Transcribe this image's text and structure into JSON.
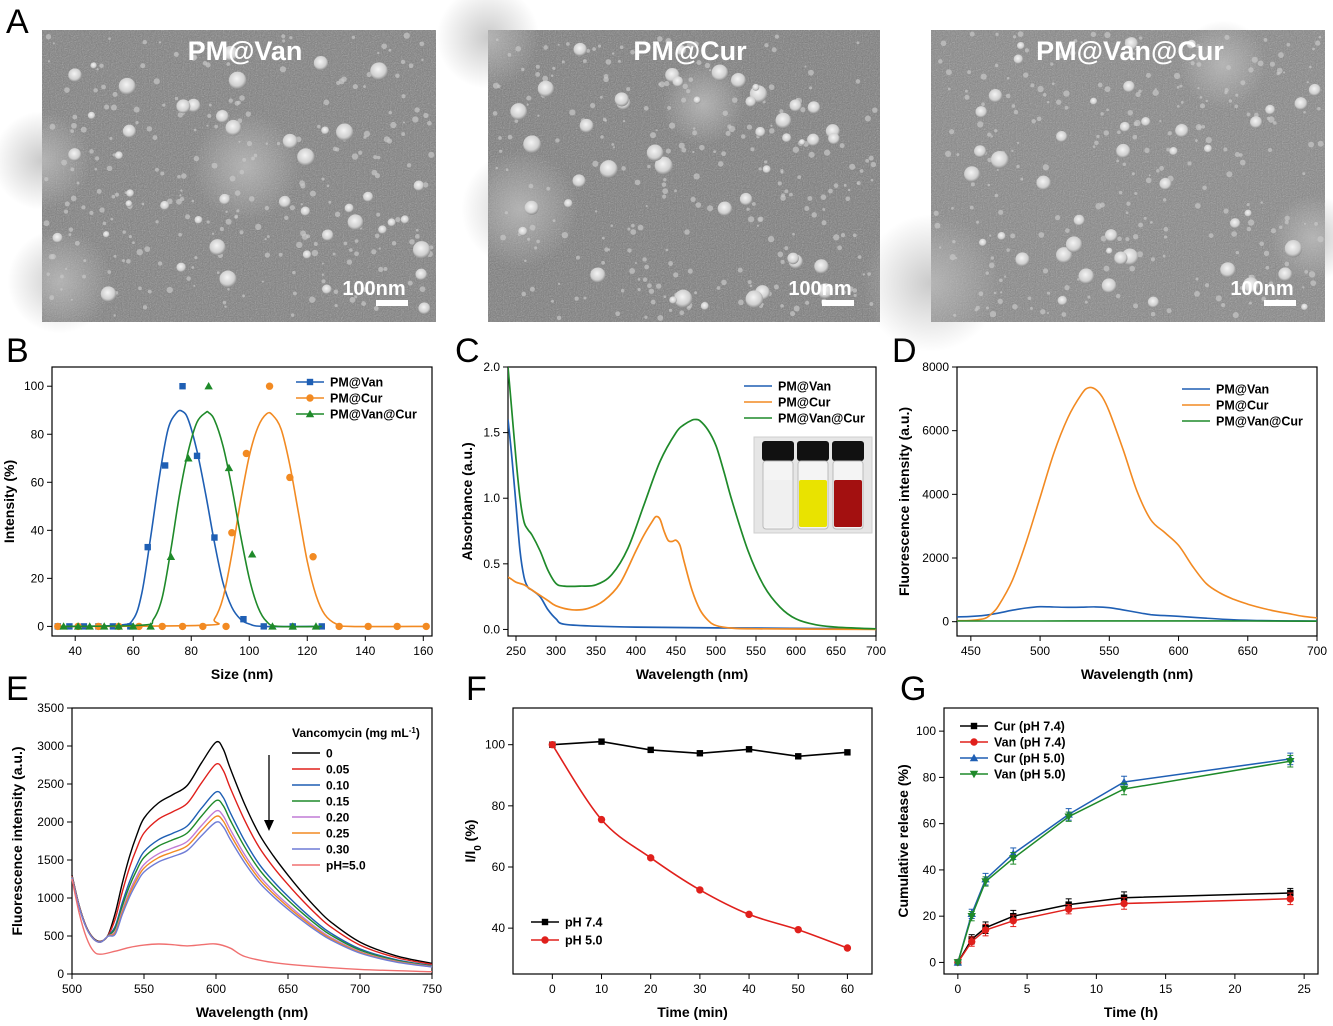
{
  "figure": {
    "panel_letters": [
      "A",
      "B",
      "C",
      "D",
      "E",
      "F",
      "G"
    ],
    "tem": [
      {
        "label": "PM@Van",
        "scale_bar": "100nm"
      },
      {
        "label": "PM@Cur",
        "scale_bar": "100nm"
      },
      {
        "label": "PM@Van@Cur",
        "scale_bar": "100nm"
      }
    ]
  },
  "chart_data": [
    {
      "panel": "B",
      "type": "line",
      "xlabel": "Size (nm)",
      "ylabel": "Intensity (%)",
      "xlim": [
        32,
        163
      ],
      "ylim": [
        -4,
        108
      ],
      "xticks": [
        40,
        60,
        80,
        100,
        120,
        140,
        160
      ],
      "yticks": [
        0,
        20,
        40,
        60,
        80,
        100
      ],
      "legend_position": "top-right",
      "series": [
        {
          "name": "PM@Van",
          "color": "#1f5fb4",
          "marker": "square",
          "x": [
            34,
            38,
            43,
            48,
            53,
            59,
            65,
            71,
            77,
            82,
            88,
            98,
            105,
            115,
            125
          ],
          "y": [
            0,
            0,
            0,
            0,
            0,
            0,
            33,
            67,
            100,
            71,
            37,
            3,
            0,
            0,
            0
          ],
          "curve_x": [
            35,
            55,
            60,
            63,
            66,
            69,
            72,
            75,
            77,
            79,
            82,
            85,
            88,
            91,
            94,
            97,
            100,
            105,
            125
          ],
          "curve_y": [
            0,
            0.5,
            3,
            14,
            37,
            62,
            82,
            89,
            89.5,
            86,
            73,
            55,
            35,
            18,
            8,
            3,
            1,
            0,
            0
          ]
        },
        {
          "name": "PM@Cur",
          "color": "#f28a22",
          "marker": "circle",
          "x": [
            34,
            41,
            48,
            55,
            62,
            70,
            77,
            84,
            92,
            94,
            99,
            107,
            114,
            122,
            131,
            141,
            151,
            161
          ],
          "y": [
            0,
            0,
            0,
            0,
            0,
            0,
            0,
            0,
            0,
            39,
            72,
            100,
            62,
            29,
            0,
            0,
            0,
            0
          ],
          "curve_x": [
            35,
            85,
            88,
            91,
            94,
            97,
            100,
            103,
            106,
            108,
            111,
            114,
            117,
            120,
            123,
            126,
            130,
            135,
            162
          ],
          "curve_y": [
            0,
            0.5,
            3,
            12,
            30,
            52,
            71,
            83,
            88.5,
            88,
            82,
            67,
            47,
            27,
            13,
            5,
            1,
            0,
            0
          ]
        },
        {
          "name": "PM@Van@Cur",
          "color": "#1f8a2a",
          "marker": "triangle",
          "x": [
            36,
            41,
            45,
            50,
            55,
            60,
            66,
            73,
            79,
            86,
            93,
            101,
            108,
            115,
            123
          ],
          "y": [
            0,
            0,
            0,
            0,
            0,
            0,
            0,
            29,
            70,
            100,
            66,
            30,
            0,
            0,
            0
          ],
          "curve_x": [
            35,
            63,
            67,
            70,
            73,
            76,
            79,
            82,
            85,
            86,
            88,
            91,
            94,
            97,
            100,
            103,
            106,
            110,
            125
          ],
          "curve_y": [
            0,
            0.5,
            3,
            12,
            32,
            55,
            73,
            85,
            89,
            89,
            86,
            75,
            58,
            38,
            20,
            8,
            2,
            0,
            0
          ]
        }
      ]
    },
    {
      "panel": "C",
      "type": "line",
      "xlabel": "Wavelength (nm)",
      "ylabel": "Absorbance (a.u.)",
      "xlim": [
        240,
        700
      ],
      "ylim": [
        -0.05,
        2.0
      ],
      "xticks": [
        250,
        300,
        350,
        400,
        450,
        500,
        550,
        600,
        650,
        700
      ],
      "yticks": [
        0.0,
        0.5,
        1.0,
        1.5,
        2.0
      ],
      "legend_position": "top-right",
      "inset": "photo of three vials: colorless, yellow, red",
      "series": [
        {
          "name": "PM@Van",
          "color": "#1f5fb4",
          "x": [
            240,
            245,
            250,
            255,
            260,
            265,
            270,
            280,
            290,
            300,
            310,
            350,
            400,
            500,
            700
          ],
          "y": [
            1.6,
            1.3,
            0.95,
            0.6,
            0.4,
            0.32,
            0.3,
            0.25,
            0.15,
            0.08,
            0.04,
            0.025,
            0.018,
            0.012,
            0.005
          ]
        },
        {
          "name": "PM@Cur",
          "color": "#f28a22",
          "x": [
            240,
            245,
            250,
            260,
            265,
            270,
            280,
            290,
            300,
            320,
            340,
            360,
            380,
            400,
            410,
            420,
            425,
            430,
            435,
            440,
            445,
            450,
            455,
            460,
            470,
            480,
            490,
            500,
            520,
            550,
            700
          ],
          "y": [
            0.4,
            0.38,
            0.36,
            0.34,
            0.32,
            0.3,
            0.26,
            0.22,
            0.18,
            0.15,
            0.16,
            0.22,
            0.35,
            0.6,
            0.72,
            0.82,
            0.86,
            0.84,
            0.75,
            0.68,
            0.67,
            0.68,
            0.64,
            0.52,
            0.3,
            0.15,
            0.07,
            0.03,
            0.01,
            0.005,
            0.0
          ]
        },
        {
          "name": "PM@Van@Cur",
          "color": "#1f8a2a",
          "x": [
            240,
            245,
            250,
            255,
            260,
            265,
            270,
            280,
            290,
            300,
            310,
            330,
            350,
            370,
            390,
            410,
            430,
            450,
            460,
            470,
            475,
            480,
            490,
            500,
            510,
            520,
            540,
            560,
            580,
            600,
            625,
            650,
            675,
            700
          ],
          "y": [
            2.0,
            1.65,
            1.3,
            1.0,
            0.82,
            0.76,
            0.72,
            0.6,
            0.45,
            0.35,
            0.33,
            0.33,
            0.34,
            0.42,
            0.62,
            0.95,
            1.28,
            1.5,
            1.56,
            1.595,
            1.6,
            1.59,
            1.52,
            1.4,
            1.2,
            0.98,
            0.6,
            0.33,
            0.17,
            0.08,
            0.035,
            0.018,
            0.01,
            0.005
          ]
        }
      ]
    },
    {
      "panel": "D",
      "type": "line",
      "xlabel": "Wavelength (nm)",
      "ylabel": "Fluorescence intensity (a.u.)",
      "xlim": [
        440,
        700
      ],
      "ylim": [
        -450,
        8000
      ],
      "xticks": [
        450,
        500,
        550,
        600,
        650,
        700
      ],
      "yticks": [
        0,
        2000,
        4000,
        6000,
        8000
      ],
      "legend_position": "top-right",
      "series": [
        {
          "name": "PM@Van",
          "color": "#1f5fb4",
          "x": [
            440,
            450,
            460,
            470,
            480,
            490,
            500,
            510,
            520,
            530,
            540,
            550,
            560,
            570,
            580,
            590,
            600,
            620,
            640,
            660,
            680,
            700
          ],
          "y": [
            150,
            165,
            200,
            270,
            360,
            430,
            470,
            460,
            450,
            455,
            465,
            440,
            370,
            290,
            220,
            190,
            170,
            110,
            60,
            35,
            25,
            20
          ]
        },
        {
          "name": "PM@Cur",
          "color": "#f28a22",
          "x": [
            440,
            450,
            460,
            465,
            470,
            480,
            490,
            500,
            510,
            520,
            530,
            535,
            540,
            545,
            550,
            560,
            570,
            580,
            590,
            600,
            610,
            620,
            630,
            640,
            650,
            660,
            670,
            680,
            690,
            700
          ],
          "y": [
            30,
            40,
            100,
            250,
            500,
            1300,
            2500,
            3900,
            5300,
            6400,
            7150,
            7350,
            7300,
            7050,
            6600,
            5400,
            4100,
            3200,
            2800,
            2400,
            1750,
            1200,
            900,
            700,
            550,
            430,
            330,
            250,
            170,
            120
          ]
        },
        {
          "name": "PM@Van@Cur",
          "color": "#1f8a2a",
          "x": [
            440,
            500,
            560,
            600,
            650,
            700
          ],
          "y": [
            20,
            22,
            25,
            25,
            20,
            15
          ]
        }
      ]
    },
    {
      "panel": "E",
      "type": "line",
      "xlabel": "Wavelength (nm)",
      "ylabel": "Fluorescence intensity (a.u.)",
      "xlim": [
        500,
        750
      ],
      "ylim": [
        0,
        3500
      ],
      "xticks": [
        500,
        550,
        600,
        650,
        700,
        750
      ],
      "yticks": [
        0,
        500,
        1000,
        1500,
        2000,
        2500,
        3000,
        3500
      ],
      "legend_title": "Vancomycin (mg mL",
      "legend_title_sup": "-1",
      "legend_title_end": ")",
      "legend_position": "top-right",
      "base_shape": {
        "x": [
          500,
          505,
          510,
          515,
          520,
          525,
          530,
          535,
          540,
          545,
          550,
          560,
          570,
          580,
          590,
          600,
          605,
          610,
          620,
          630,
          640,
          650,
          660,
          670,
          680,
          700,
          725,
          750
        ],
        "y": [
          1300,
          900,
          620,
          470,
          430,
          510,
          800,
          1200,
          1550,
          1830,
          2050,
          2250,
          2360,
          2480,
          2780,
          3050,
          2960,
          2700,
          2230,
          1840,
          1550,
          1300,
          1070,
          860,
          680,
          420,
          240,
          140
        ]
      },
      "series": [
        {
          "name": "0",
          "color": "#000000",
          "scale": 1.0
        },
        {
          "name": "0.05",
          "color": "#e0201c",
          "scale": 0.905
        },
        {
          "name": "0.10",
          "color": "#1f5fb4",
          "scale": 0.785
        },
        {
          "name": "0.15",
          "color": "#1f8a2a",
          "scale": 0.748
        },
        {
          "name": "0.20",
          "color": "#c07bd6",
          "scale": 0.703
        },
        {
          "name": "0.25",
          "color": "#f28a22",
          "scale": 0.68
        },
        {
          "name": "0.30",
          "color": "#6f7cd6",
          "scale": 0.655
        },
        {
          "name": "pH=5.0",
          "color": "#f07070",
          "x": [
            500,
            505,
            510,
            515,
            520,
            530,
            540,
            550,
            560,
            570,
            580,
            590,
            600,
            610,
            620,
            640,
            660,
            700,
            750
          ],
          "y": [
            1250,
            800,
            480,
            300,
            260,
            300,
            350,
            380,
            395,
            385,
            370,
            385,
            395,
            340,
            230,
            150,
            110,
            60,
            30
          ]
        }
      ]
    },
    {
      "panel": "F",
      "type": "line",
      "xlabel": "Time (min)",
      "ylabel": "I/I",
      "ylabel_sub": "0",
      "ylabel_end": " (%)",
      "xlim": [
        -8,
        65
      ],
      "ylim": [
        25,
        112
      ],
      "xticks": [
        0,
        10,
        20,
        30,
        40,
        50,
        60
      ],
      "yticks": [
        40,
        60,
        80,
        100
      ],
      "legend_position": "bottom-left",
      "series": [
        {
          "name": "pH 7.4",
          "color": "#000000",
          "marker": "square",
          "x": [
            0,
            10,
            20,
            30,
            40,
            50,
            60
          ],
          "y": [
            100,
            101,
            98.3,
            97.2,
            98.5,
            96.2,
            97.5
          ]
        },
        {
          "name": "pH 5.0",
          "color": "#e0201c",
          "marker": "circle",
          "x": [
            0,
            10,
            20,
            30,
            40,
            50,
            60
          ],
          "y": [
            100,
            75.5,
            63,
            52.5,
            44.5,
            39.5,
            33.5
          ]
        }
      ]
    },
    {
      "panel": "G",
      "type": "line",
      "xlabel": "Time (h)",
      "ylabel": "Cumulative release (%)",
      "xlim": [
        -1,
        26
      ],
      "ylim": [
        -5,
        110
      ],
      "xticks": [
        0,
        5,
        10,
        15,
        20,
        25
      ],
      "yticks": [
        0,
        20,
        40,
        60,
        80,
        100
      ],
      "legend_position": "top-left",
      "series": [
        {
          "name": "Cur (pH 7.4)",
          "color": "#000000",
          "marker": "square",
          "x": [
            0,
            1,
            2,
            4,
            8,
            12,
            24
          ],
          "y": [
            0,
            10,
            15,
            20,
            25,
            28,
            30
          ],
          "err": [
            0.5,
            2,
            2.5,
            2.5,
            2.5,
            2.5,
            2
          ]
        },
        {
          "name": "Van (pH 7.4)",
          "color": "#e0201c",
          "marker": "circle",
          "x": [
            0,
            1,
            2,
            4,
            8,
            12,
            24
          ],
          "y": [
            0,
            9,
            14,
            18,
            23,
            25.5,
            27.5
          ],
          "err": [
            0.5,
            2,
            2.5,
            2.5,
            2,
            2.5,
            2.5
          ]
        },
        {
          "name": "Cur (pH 5.0)",
          "color": "#1f5fb4",
          "marker": "triangle",
          "x": [
            0,
            1,
            2,
            4,
            8,
            12,
            24
          ],
          "y": [
            0,
            21,
            36,
            47,
            64,
            78,
            88
          ],
          "err": [
            0.5,
            2,
            2.5,
            2.5,
            2.5,
            2.5,
            2.5
          ]
        },
        {
          "name": "Van (pH 5.0)",
          "color": "#1f8a2a",
          "marker": "triangle-down",
          "x": [
            0,
            1,
            2,
            4,
            8,
            12,
            24
          ],
          "y": [
            0,
            20,
            35,
            45,
            63,
            75,
            87
          ],
          "err": [
            0.5,
            2,
            2,
            2.5,
            2,
            2.5,
            2.5
          ]
        }
      ]
    }
  ]
}
